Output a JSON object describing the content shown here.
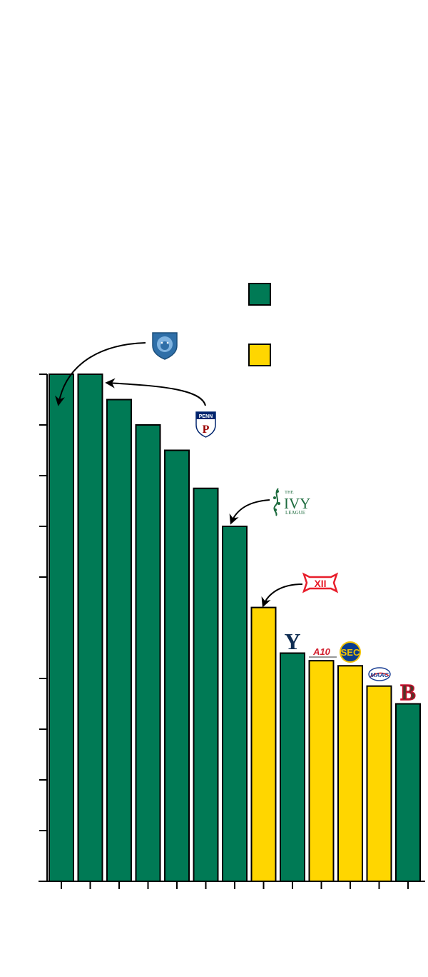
{
  "chart_data": {
    "type": "bar",
    "title": "",
    "xlabel": "",
    "ylabel": "",
    "ylim": [
      0,
      10
    ],
    "yticks": [
      0,
      1,
      2,
      3,
      4,
      5,
      6,
      7,
      8,
      9,
      10
    ],
    "yticks_hidden": [
      5
    ],
    "grid": false,
    "legend": {
      "position": "top-right",
      "entries": [
        {
          "color": "#007a55",
          "label": ""
        },
        {
          "color": "#ffd600",
          "label": ""
        }
      ]
    },
    "categories": [
      "",
      "",
      "",
      "",
      "",
      "",
      "",
      "",
      "",
      "",
      "",
      "",
      ""
    ],
    "values": [
      10.0,
      10.0,
      9.5,
      9.0,
      8.5,
      7.75,
      7.0,
      5.4,
      4.5,
      4.35,
      4.25,
      3.85,
      3.5
    ],
    "colors": [
      "#007a55",
      "#007a55",
      "#007a55",
      "#007a55",
      "#007a55",
      "#007a55",
      "#007a55",
      "#ffd600",
      "#007a55",
      "#ffd600",
      "#ffd600",
      "#ffd600",
      "#007a55"
    ],
    "annotations": [
      {
        "bar": 0,
        "icon": "lion-shield-logo-icon"
      },
      {
        "bar": 1,
        "icon": "penn-shield-logo-icon"
      },
      {
        "bar": 6,
        "icon": "ivy-league-logo-icon"
      },
      {
        "bar": 7,
        "icon": "big-12-logo-icon"
      },
      {
        "bar": 8,
        "icon": "yale-y-logo-icon"
      },
      {
        "bar": 9,
        "icon": "a10-logo-icon"
      },
      {
        "bar": 10,
        "icon": "sec-logo-icon"
      },
      {
        "bar": 11,
        "icon": "maac-logo-icon"
      },
      {
        "bar": 12,
        "icon": "brown-b-logo-icon"
      }
    ]
  },
  "logos": {
    "penn_text": "PENN",
    "penn_letter": "P",
    "ivy_the": "THE",
    "ivy_ivy": "IVY",
    "ivy_league": "LEAGUE",
    "big12_text": "XII",
    "yale_letter": "Y",
    "a10_text": "A10",
    "sec_text": "SEC",
    "maac_text": "MAAC",
    "brown_letter": "B"
  }
}
